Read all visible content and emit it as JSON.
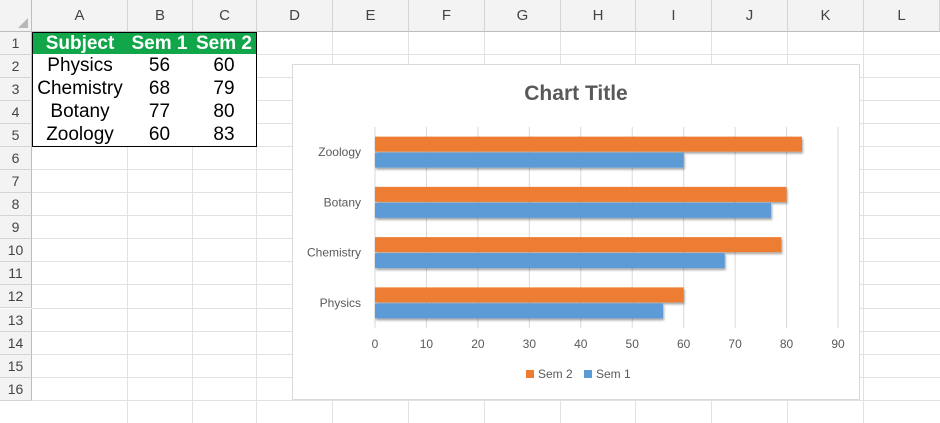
{
  "sheet": {
    "columns": [
      "A",
      "B",
      "C",
      "D",
      "E",
      "F",
      "G",
      "H",
      "I",
      "J",
      "K",
      "L"
    ],
    "rows": [
      "1",
      "2",
      "3",
      "4",
      "5",
      "6",
      "7",
      "8",
      "9",
      "10",
      "11",
      "12",
      "13",
      "14",
      "15",
      "16"
    ],
    "header": [
      "Subject",
      "Sem 1",
      "Sem 2"
    ],
    "data": [
      [
        "Physics",
        "56",
        "60"
      ],
      [
        "Chemistry",
        "68",
        "79"
      ],
      [
        "Botany",
        "77",
        "80"
      ],
      [
        "Zoology",
        "60",
        "83"
      ]
    ],
    "colors": {
      "header_bg": "#12a64b",
      "header_text": "#ffffff"
    }
  },
  "chart_data": {
    "type": "bar",
    "orientation": "horizontal",
    "title": "Chart Title",
    "categories": [
      "Physics",
      "Chemistry",
      "Botany",
      "Zoology"
    ],
    "series": [
      {
        "name": "Sem 1",
        "values": [
          56,
          68,
          77,
          60
        ],
        "color": "#5b9bd5"
      },
      {
        "name": "Sem 2",
        "values": [
          60,
          79,
          80,
          83
        ],
        "color": "#ed7d31"
      }
    ],
    "xlim": [
      0,
      90
    ],
    "xticks": [
      "0",
      "10",
      "20",
      "30",
      "40",
      "50",
      "60",
      "70",
      "80",
      "90"
    ],
    "grid": true,
    "legend": "bottom",
    "legend_order": [
      "Sem 2",
      "Sem 1"
    ]
  }
}
